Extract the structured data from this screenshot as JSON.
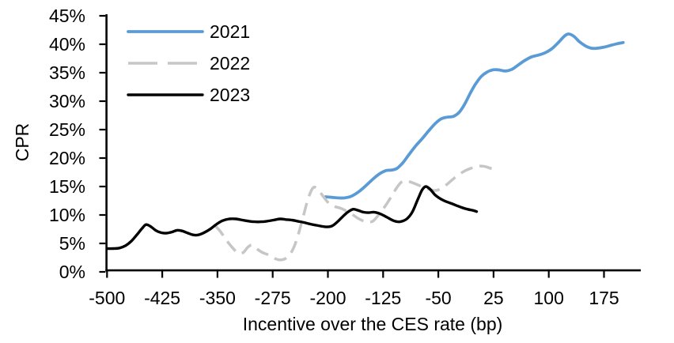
{
  "chart_data": {
    "type": "line",
    "title": "",
    "xlabel": "Incentive over the CES rate (bp)",
    "ylabel": "CPR",
    "xlim": [
      -500,
      225
    ],
    "ylim": [
      0,
      45
    ],
    "grid": false,
    "legend_position": "top-left-inside",
    "x_ticks": [
      -500,
      -425,
      -350,
      -275,
      -200,
      -125,
      -50,
      25,
      100,
      175
    ],
    "x_tick_labels": [
      "-500",
      "-425",
      "-350",
      "-275",
      "-200",
      "-125",
      "-50",
      "25",
      "100",
      "175"
    ],
    "y_ticks": [
      0,
      5,
      10,
      15,
      20,
      25,
      30,
      35,
      40,
      45
    ],
    "y_tick_labels": [
      "0%",
      "5%",
      "10%",
      "15%",
      "20%",
      "25%",
      "30%",
      "35%",
      "40%",
      "45%"
    ],
    "series": [
      {
        "name": "2021",
        "color": "#5B9BD5",
        "dash": "solid",
        "width": 3.8,
        "points": [
          [
            -203,
            13.2
          ],
          [
            -195,
            13.1
          ],
          [
            -186,
            13.0
          ],
          [
            -177,
            13.0
          ],
          [
            -168,
            13.3
          ],
          [
            -158,
            14.1
          ],
          [
            -148,
            15.2
          ],
          [
            -138,
            16.4
          ],
          [
            -129,
            17.3
          ],
          [
            -121,
            17.8
          ],
          [
            -113,
            17.9
          ],
          [
            -106,
            18.2
          ],
          [
            -98,
            19.2
          ],
          [
            -90,
            20.6
          ],
          [
            -81,
            22.1
          ],
          [
            -72,
            23.4
          ],
          [
            -63,
            24.8
          ],
          [
            -54,
            26.1
          ],
          [
            -46,
            26.9
          ],
          [
            -38,
            27.2
          ],
          [
            -30,
            27.3
          ],
          [
            -22,
            28.0
          ],
          [
            -15,
            29.3
          ],
          [
            -7,
            31.3
          ],
          [
            0,
            32.9
          ],
          [
            8,
            34.3
          ],
          [
            16,
            35.1
          ],
          [
            24,
            35.5
          ],
          [
            32,
            35.5
          ],
          [
            41,
            35.3
          ],
          [
            50,
            35.6
          ],
          [
            59,
            36.4
          ],
          [
            68,
            37.2
          ],
          [
            77,
            37.8
          ],
          [
            86,
            38.1
          ],
          [
            95,
            38.5
          ],
          [
            104,
            39.2
          ],
          [
            113,
            40.3
          ],
          [
            121,
            41.4
          ],
          [
            127,
            41.8
          ],
          [
            134,
            41.4
          ],
          [
            142,
            40.4
          ],
          [
            150,
            39.7
          ],
          [
            158,
            39.3
          ],
          [
            166,
            39.3
          ],
          [
            175,
            39.5
          ],
          [
            184,
            39.8
          ],
          [
            193,
            40.1
          ],
          [
            201,
            40.3
          ]
        ]
      },
      {
        "name": "2022",
        "color": "#C6C6C6",
        "dash": "dashed",
        "width": 3.5,
        "points": [
          [
            -353,
            8.1
          ],
          [
            -346,
            7.1
          ],
          [
            -338,
            5.6
          ],
          [
            -330,
            4.3
          ],
          [
            -322,
            3.3
          ],
          [
            -315,
            3.4
          ],
          [
            -309,
            4.3
          ],
          [
            -303,
            4.7
          ],
          [
            -296,
            4.0
          ],
          [
            -289,
            3.4
          ],
          [
            -281,
            3.0
          ],
          [
            -273,
            2.4
          ],
          [
            -265,
            2.1
          ],
          [
            -257,
            2.4
          ],
          [
            -249,
            3.6
          ],
          [
            -242,
            5.8
          ],
          [
            -234,
            9.5
          ],
          [
            -227,
            12.8
          ],
          [
            -220,
            14.8
          ],
          [
            -213,
            14.4
          ],
          [
            -206,
            13.2
          ],
          [
            -199,
            12.1
          ],
          [
            -191,
            11.5
          ],
          [
            -183,
            11.2
          ],
          [
            -175,
            10.7
          ],
          [
            -167,
            10.1
          ],
          [
            -159,
            9.4
          ],
          [
            -151,
            8.9
          ],
          [
            -145,
            8.7
          ],
          [
            -138,
            9.0
          ],
          [
            -130,
            10.2
          ],
          [
            -122,
            11.6
          ],
          [
            -114,
            13.2
          ],
          [
            -107,
            14.7
          ],
          [
            -100,
            15.8
          ],
          [
            -95,
            16.0
          ],
          [
            -88,
            15.8
          ],
          [
            -80,
            15.4
          ],
          [
            -71,
            14.9
          ],
          [
            -62,
            14.5
          ],
          [
            -54,
            14.3
          ],
          [
            -47,
            14.6
          ],
          [
            -39,
            15.3
          ],
          [
            -31,
            16.2
          ],
          [
            -24,
            16.9
          ],
          [
            -16,
            17.6
          ],
          [
            -8,
            18.1
          ],
          [
            0,
            18.4
          ],
          [
            7,
            18.6
          ],
          [
            14,
            18.5
          ],
          [
            21,
            18.2
          ],
          [
            28,
            18.0
          ]
        ]
      },
      {
        "name": "2023",
        "color": "#000000",
        "dash": "solid",
        "width": 3.4,
        "points": [
          [
            -500,
            4.1
          ],
          [
            -491,
            4.1
          ],
          [
            -483,
            4.2
          ],
          [
            -475,
            4.6
          ],
          [
            -467,
            5.4
          ],
          [
            -459,
            6.6
          ],
          [
            -452,
            7.7
          ],
          [
            -447,
            8.3
          ],
          [
            -441,
            8.0
          ],
          [
            -434,
            7.3
          ],
          [
            -427,
            6.9
          ],
          [
            -420,
            6.8
          ],
          [
            -412,
            7.0
          ],
          [
            -405,
            7.3
          ],
          [
            -398,
            7.2
          ],
          [
            -390,
            6.8
          ],
          [
            -383,
            6.5
          ],
          [
            -376,
            6.5
          ],
          [
            -368,
            6.9
          ],
          [
            -359,
            7.6
          ],
          [
            -351,
            8.4
          ],
          [
            -343,
            9.0
          ],
          [
            -334,
            9.3
          ],
          [
            -325,
            9.3
          ],
          [
            -316,
            9.1
          ],
          [
            -307,
            8.9
          ],
          [
            -299,
            8.8
          ],
          [
            -291,
            8.8
          ],
          [
            -283,
            8.9
          ],
          [
            -274,
            9.1
          ],
          [
            -265,
            9.3
          ],
          [
            -257,
            9.2
          ],
          [
            -249,
            9.1
          ],
          [
            -241,
            8.9
          ],
          [
            -233,
            8.7
          ],
          [
            -224,
            8.4
          ],
          [
            -216,
            8.2
          ],
          [
            -208,
            8.0
          ],
          [
            -201,
            7.9
          ],
          [
            -194,
            8.1
          ],
          [
            -187,
            8.8
          ],
          [
            -180,
            9.7
          ],
          [
            -173,
            10.5
          ],
          [
            -166,
            11.0
          ],
          [
            -159,
            10.8
          ],
          [
            -152,
            10.5
          ],
          [
            -145,
            10.4
          ],
          [
            -138,
            10.5
          ],
          [
            -131,
            10.3
          ],
          [
            -124,
            9.9
          ],
          [
            -117,
            9.4
          ],
          [
            -111,
            9.0
          ],
          [
            -105,
            8.8
          ],
          [
            -99,
            8.9
          ],
          [
            -92,
            9.4
          ],
          [
            -85,
            10.6
          ],
          [
            -78,
            12.7
          ],
          [
            -72,
            14.4
          ],
          [
            -67,
            15.0
          ],
          [
            -61,
            14.5
          ],
          [
            -55,
            13.6
          ],
          [
            -49,
            13.0
          ],
          [
            -42,
            12.5
          ],
          [
            -34,
            12.1
          ],
          [
            -26,
            11.7
          ],
          [
            -18,
            11.3
          ],
          [
            -10,
            11.0
          ],
          [
            -3,
            10.8
          ],
          [
            2,
            10.6
          ]
        ]
      }
    ]
  }
}
